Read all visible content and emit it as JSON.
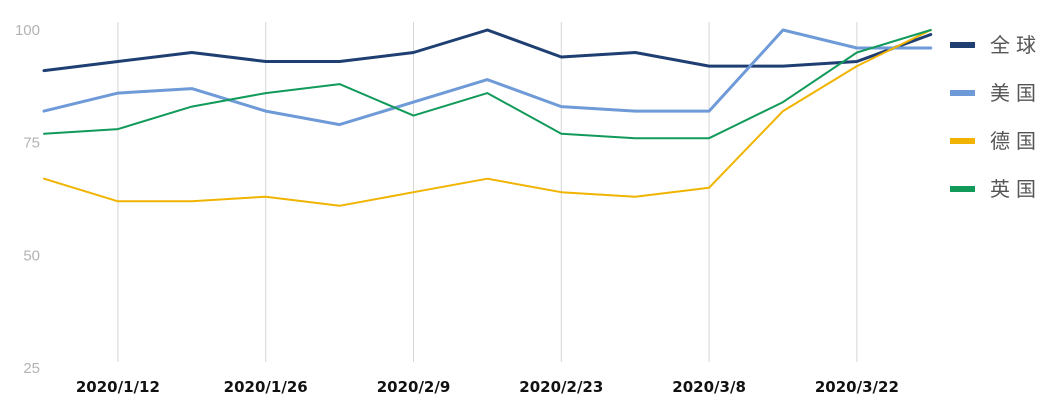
{
  "chart_data": {
    "type": "line",
    "title": "",
    "xlabel": "",
    "ylabel": "",
    "x_tick_labels": [
      "2020/1/12",
      "2020/1/26",
      "2020/2/9",
      "2020/2/23",
      "2020/3/8",
      "2020/3/22"
    ],
    "y_tick_labels": [
      "100",
      "75",
      "50",
      "25"
    ],
    "ylim": [
      25,
      100
    ],
    "grid": "vertical",
    "legend": "right",
    "x": [
      "2020/1/5",
      "2020/1/12",
      "2020/1/19",
      "2020/1/26",
      "2020/2/2",
      "2020/2/9",
      "2020/2/16",
      "2020/2/23",
      "2020/3/1",
      "2020/3/8",
      "2020/3/15",
      "2020/3/22",
      "2020/3/29"
    ],
    "series": [
      {
        "name": "全球",
        "color": "#1f3f73",
        "values": [
          91,
          93,
          95,
          93,
          93,
          95,
          100,
          94,
          95,
          92,
          92,
          93,
          99
        ]
      },
      {
        "name": "美国",
        "color": "#6f9ad8",
        "values": [
          82,
          86,
          87,
          82,
          79,
          84,
          89,
          83,
          82,
          82,
          100,
          96,
          96
        ]
      },
      {
        "name": "德国",
        "color": "#f0b400",
        "values": [
          67,
          62,
          62,
          63,
          61,
          64,
          67,
          64,
          63,
          65,
          82,
          92,
          100
        ]
      },
      {
        "name": "英国",
        "color": "#119a5a",
        "values": [
          77,
          78,
          83,
          86,
          88,
          81,
          86,
          77,
          76,
          76,
          84,
          95,
          100
        ]
      }
    ]
  }
}
